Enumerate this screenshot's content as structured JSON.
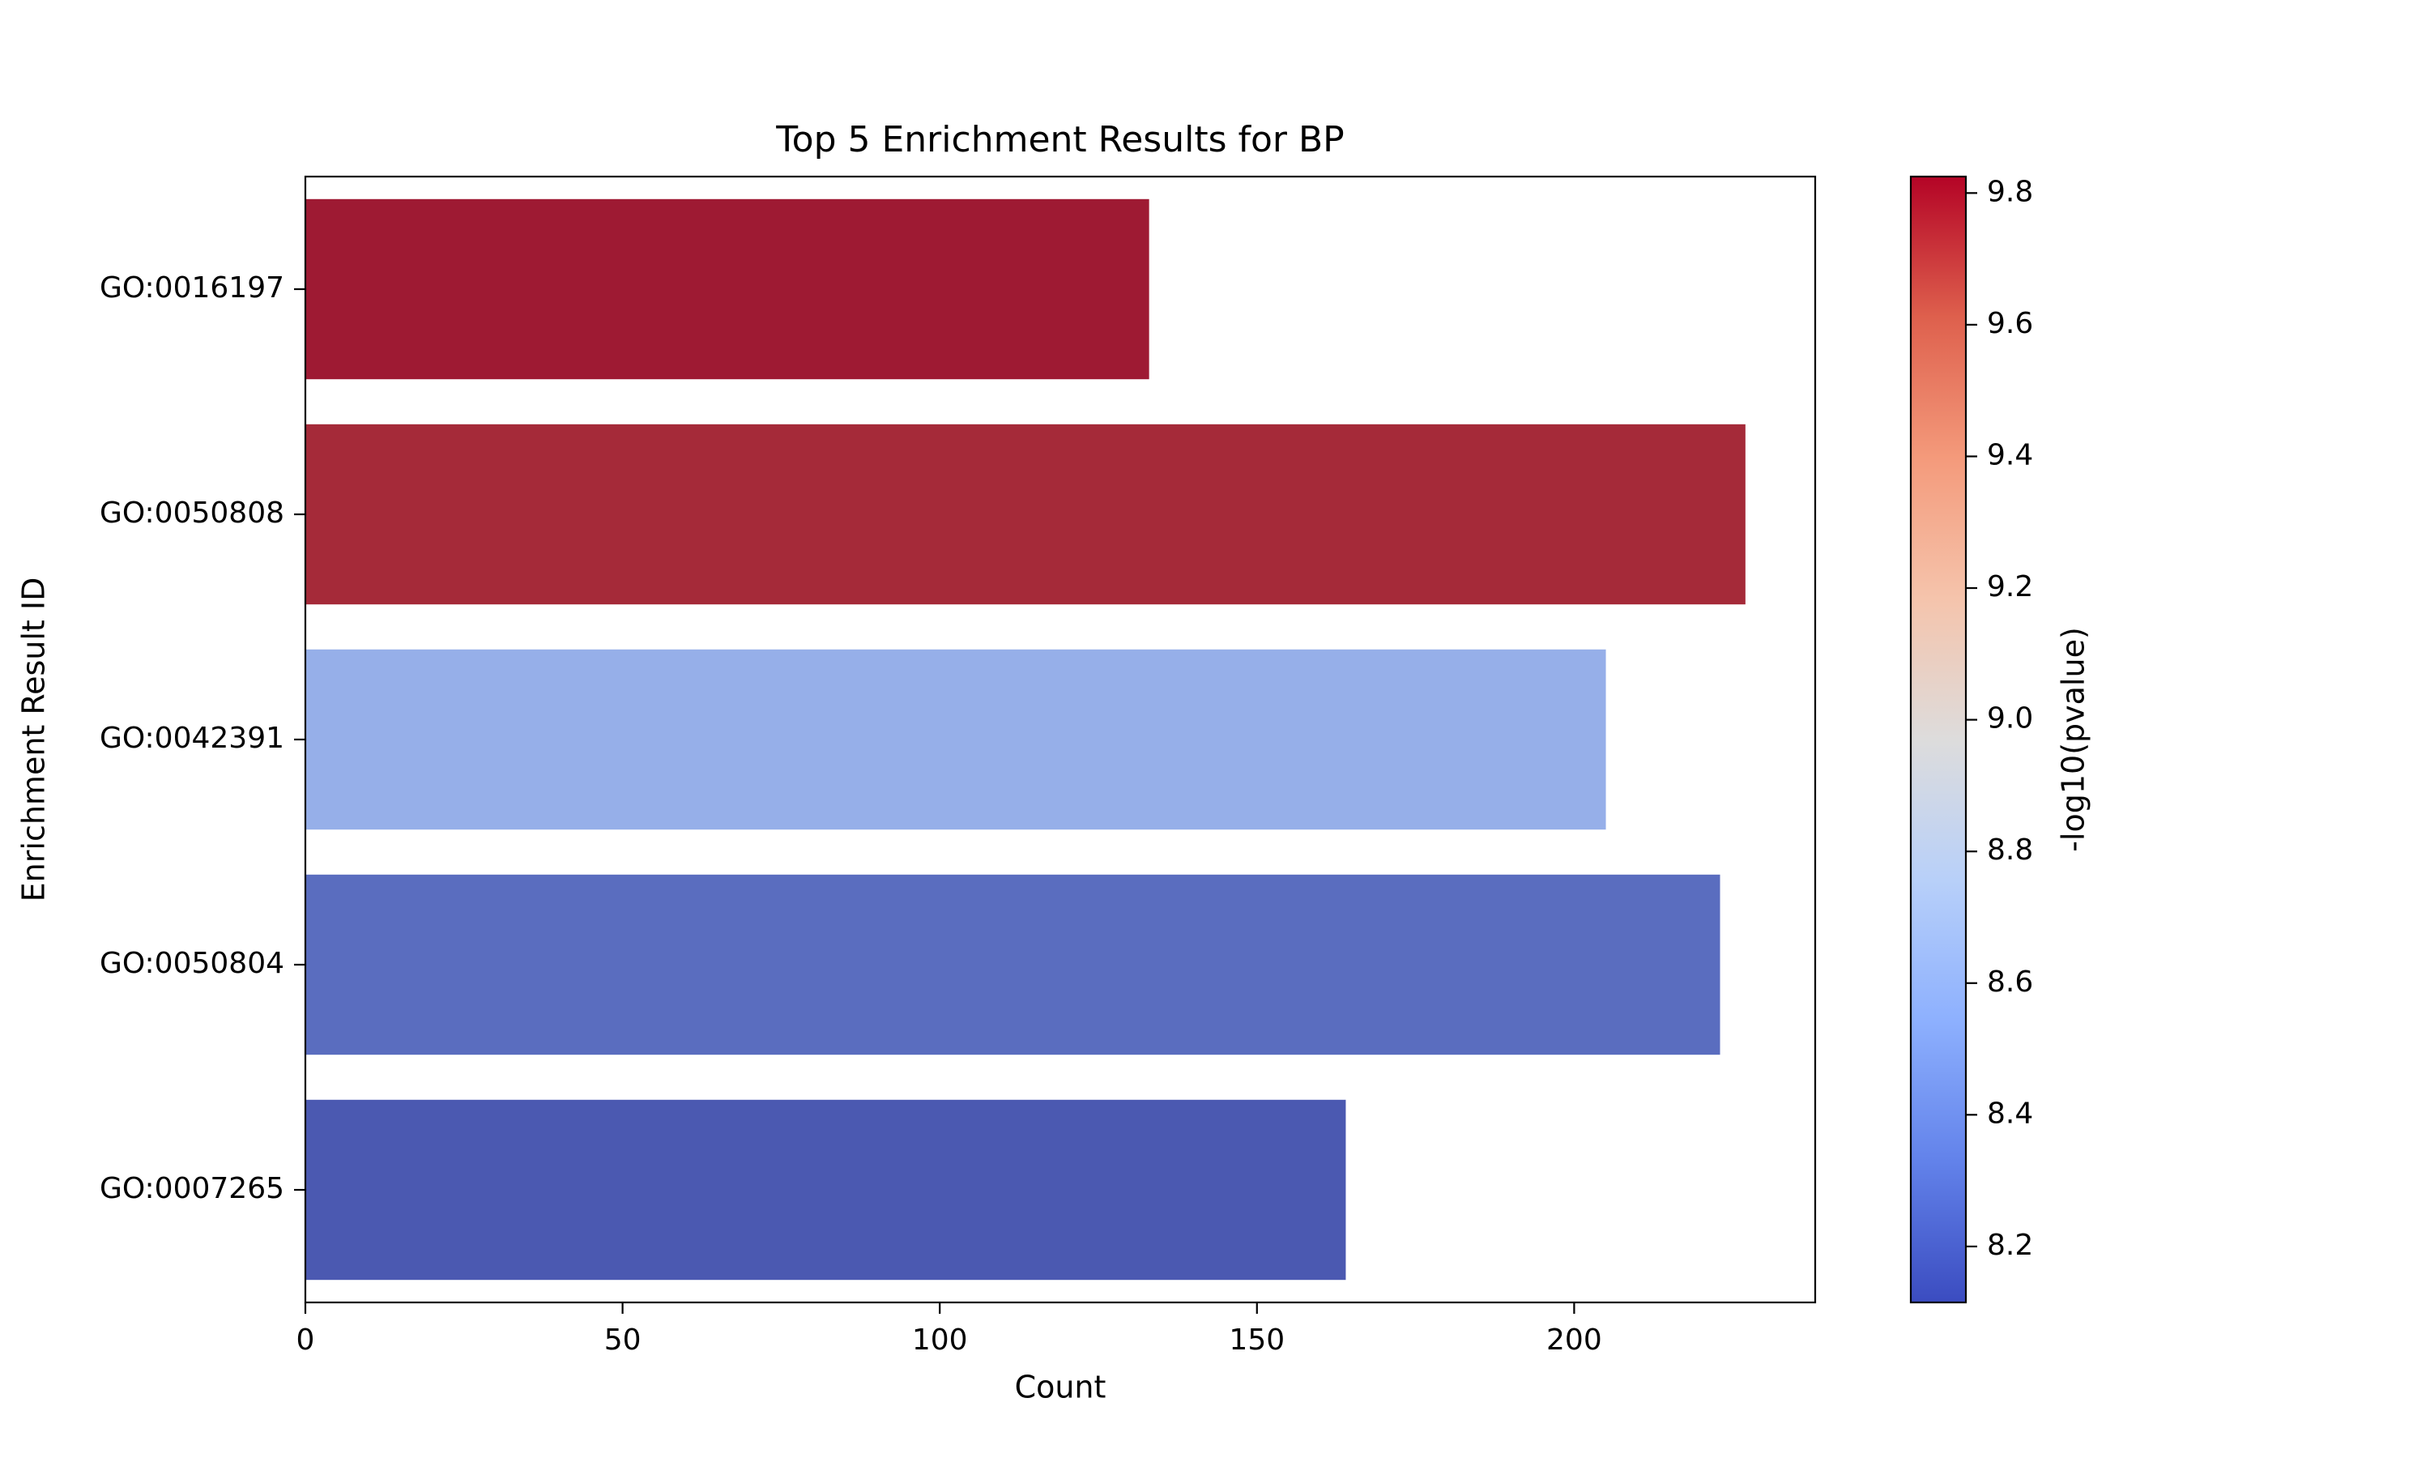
{
  "chart_data": {
    "type": "bar",
    "orientation": "horizontal",
    "title": "Top 5 Enrichment Results for BP",
    "xlabel": "Count",
    "ylabel": "Enrichment Result ID",
    "categories": [
      "GO:0016197",
      "GO:0050808",
      "GO:0042391",
      "GO:0050804",
      "GO:0007265"
    ],
    "values": [
      133,
      227,
      205,
      223,
      164
    ],
    "color_values": [
      9.81,
      9.77,
      8.66,
      8.3,
      8.18
    ],
    "bar_colors": [
      "#9e1a33",
      "#a52a39",
      "#96afe9",
      "#5a6dbf",
      "#4b59b1"
    ],
    "xlim": [
      0,
      238
    ],
    "xticks": [
      0,
      50,
      100,
      150,
      200
    ],
    "grid": false,
    "colorbar": {
      "label": "-log10(pvalue)",
      "range": [
        8.115,
        9.825
      ],
      "ticks": [
        "8.2",
        "8.4",
        "8.6",
        "8.8",
        "9.0",
        "9.2",
        "9.4",
        "9.6",
        "9.8"
      ],
      "colormap": "coolwarm",
      "stops": [
        "#3b4cc0",
        "#6282ea",
        "#8db0fe",
        "#b8d0f9",
        "#dddcdc",
        "#f5c4ac",
        "#f49a7b",
        "#de604d",
        "#b40426"
      ]
    }
  }
}
